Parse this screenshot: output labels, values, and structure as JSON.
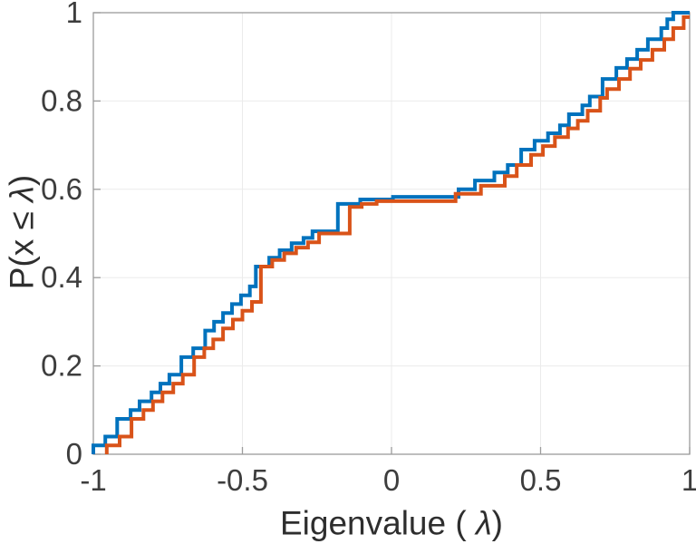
{
  "figure": {
    "background": "#ffffff"
  },
  "axis": {
    "x": {
      "title_prefix": "Eigenvalue ( ",
      "title_lambda": "λ",
      "title_suffix": ")",
      "tick_labels": [
        "-1",
        "-0.5",
        "0",
        "0.5",
        "1"
      ],
      "tick_values": [
        -1,
        -0.5,
        0,
        0.5,
        1
      ]
    },
    "y": {
      "title_prefix": "P(x ≤ ",
      "title_lambda": "λ",
      "title_suffix": ")",
      "tick_labels": [
        "0",
        "0.2",
        "0.4",
        "0.6",
        "0.8",
        "1"
      ],
      "tick_values": [
        0,
        0.2,
        0.4,
        0.6,
        0.8,
        1
      ]
    }
  },
  "style": {
    "box_color": "#9c9c9c",
    "grid_color": "#ebebeb",
    "tick_text_color": "#3d3d3d",
    "tick_font_size": 33,
    "line_width": 4
  },
  "chart_data": {
    "type": "line",
    "subtype": "ecdf-step",
    "title": "",
    "xlabel": "Eigenvalue ( λ)",
    "ylabel": "P(x ≤ λ)",
    "xlim": [
      -1,
      1
    ],
    "ylim": [
      0,
      1
    ],
    "grid": true,
    "legend_position": "none",
    "series": [
      {
        "name": "ecdf-blue",
        "color": "#0072BD",
        "points": [
          [
            -1.0,
            0.02
          ],
          [
            -0.96,
            0.04
          ],
          [
            -0.92,
            0.08
          ],
          [
            -0.875,
            0.1
          ],
          [
            -0.845,
            0.12
          ],
          [
            -0.805,
            0.14
          ],
          [
            -0.775,
            0.16
          ],
          [
            -0.745,
            0.18
          ],
          [
            -0.705,
            0.22
          ],
          [
            -0.665,
            0.24
          ],
          [
            -0.625,
            0.28
          ],
          [
            -0.595,
            0.3
          ],
          [
            -0.565,
            0.32
          ],
          [
            -0.535,
            0.34
          ],
          [
            -0.505,
            0.36
          ],
          [
            -0.475,
            0.38
          ],
          [
            -0.455,
            0.425
          ],
          [
            -0.41,
            0.445
          ],
          [
            -0.375,
            0.462
          ],
          [
            -0.335,
            0.478
          ],
          [
            -0.295,
            0.49
          ],
          [
            -0.265,
            0.505
          ],
          [
            -0.18,
            0.567
          ],
          [
            -0.105,
            0.577
          ],
          [
            0.005,
            0.583
          ],
          [
            0.225,
            0.6
          ],
          [
            0.28,
            0.62
          ],
          [
            0.345,
            0.638
          ],
          [
            0.39,
            0.655
          ],
          [
            0.435,
            0.69
          ],
          [
            0.48,
            0.71
          ],
          [
            0.525,
            0.727
          ],
          [
            0.565,
            0.745
          ],
          [
            0.595,
            0.77
          ],
          [
            0.64,
            0.79
          ],
          [
            0.665,
            0.81
          ],
          [
            0.708,
            0.85
          ],
          [
            0.754,
            0.875
          ],
          [
            0.79,
            0.895
          ],
          [
            0.824,
            0.916
          ],
          [
            0.86,
            0.94
          ],
          [
            0.905,
            0.965
          ],
          [
            0.925,
            0.985
          ],
          [
            0.945,
            1.0
          ]
        ]
      },
      {
        "name": "ecdf-orange",
        "color": "#D95319",
        "points": [
          [
            -0.955,
            0.02
          ],
          [
            -0.912,
            0.04
          ],
          [
            -0.872,
            0.08
          ],
          [
            -0.832,
            0.1
          ],
          [
            -0.8,
            0.12
          ],
          [
            -0.768,
            0.14
          ],
          [
            -0.732,
            0.16
          ],
          [
            -0.7,
            0.18
          ],
          [
            -0.662,
            0.22
          ],
          [
            -0.628,
            0.24
          ],
          [
            -0.598,
            0.26
          ],
          [
            -0.565,
            0.285
          ],
          [
            -0.532,
            0.305
          ],
          [
            -0.5,
            0.325
          ],
          [
            -0.468,
            0.345
          ],
          [
            -0.438,
            0.425
          ],
          [
            -0.4,
            0.44
          ],
          [
            -0.36,
            0.455
          ],
          [
            -0.32,
            0.468
          ],
          [
            -0.28,
            0.48
          ],
          [
            -0.243,
            0.5
          ],
          [
            -0.14,
            0.56
          ],
          [
            -0.1,
            0.567
          ],
          [
            -0.05,
            0.573
          ],
          [
            0.215,
            0.59
          ],
          [
            0.3,
            0.608
          ],
          [
            0.38,
            0.63
          ],
          [
            0.42,
            0.655
          ],
          [
            0.468,
            0.678
          ],
          [
            0.508,
            0.698
          ],
          [
            0.548,
            0.718
          ],
          [
            0.592,
            0.738
          ],
          [
            0.625,
            0.755
          ],
          [
            0.658,
            0.778
          ],
          [
            0.7,
            0.807
          ],
          [
            0.723,
            0.827
          ],
          [
            0.763,
            0.85
          ],
          [
            0.8,
            0.873
          ],
          [
            0.836,
            0.893
          ],
          [
            0.875,
            0.916
          ],
          [
            0.915,
            0.94
          ],
          [
            0.945,
            0.965
          ],
          [
            0.98,
            0.99
          ]
        ]
      }
    ]
  }
}
